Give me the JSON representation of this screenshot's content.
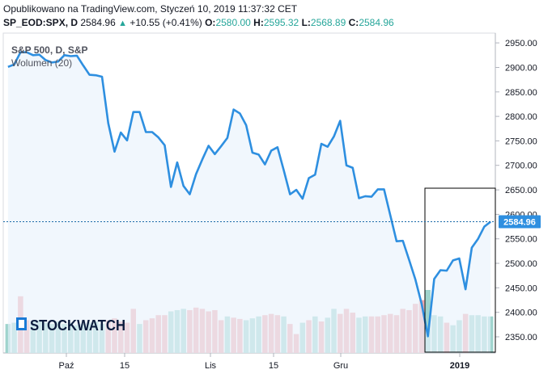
{
  "header": {
    "published": "Opublikowano na TradingView.com, Styczeń 10, 2019 11:37:32 CET",
    "symbol": "SP_EOD:SPX, D",
    "last": "2584.96",
    "change": "+10.55 (+0.41%)",
    "o_label": "O:",
    "o_value": "2580.00",
    "h_label": "H:",
    "h_value": "2595.32",
    "l_label": "L:",
    "l_value": "2568.89",
    "c_label": "C:",
    "c_value": "2584.96"
  },
  "legend": {
    "title": "S&P 500, D, S&P",
    "volume": "Wolumen (20)"
  },
  "watermark": "STOCKWATCH",
  "colors": {
    "line": "#2e8fe0",
    "fill": "#eaf3fc",
    "vol_up": "#9fd4cd",
    "vol_down": "#f0a8ae",
    "price_label_bg": "#2e8fe0",
    "price_line": "#1a6aa8"
  },
  "chart_data": {
    "type": "line",
    "y_ticks": [
      2350,
      2400,
      2450,
      2500,
      2550,
      2600,
      2650,
      2700,
      2750,
      2800,
      2850,
      2900,
      2950
    ],
    "ylim": [
      2317,
      2970
    ],
    "x_ticks": [
      "Paź",
      "15",
      "Lis",
      "15",
      "Gru",
      "2019"
    ],
    "last_price_label": "2584.96",
    "price": [
      2901,
      2906,
      2931,
      2931,
      2925,
      2926,
      2915,
      2910,
      2912,
      2925,
      2923,
      2924,
      2904,
      2885,
      2884,
      2881,
      2786,
      2728,
      2767,
      2751,
      2809,
      2809,
      2768,
      2768,
      2757,
      2741,
      2656,
      2706,
      2658,
      2641,
      2682,
      2712,
      2740,
      2723,
      2739,
      2756,
      2814,
      2806,
      2782,
      2726,
      2722,
      2702,
      2730,
      2737,
      2690,
      2641,
      2650,
      2632,
      2674,
      2681,
      2744,
      2738,
      2759,
      2791,
      2700,
      2695,
      2633,
      2637,
      2636,
      2651,
      2651,
      2598,
      2545,
      2546,
      2507,
      2467,
      2417,
      2351,
      2468,
      2486,
      2485,
      2506,
      2510,
      2447,
      2532,
      2550,
      2575,
      2585
    ],
    "volume_dir": [
      "up",
      "up",
      "down",
      "down",
      "up",
      "up",
      "up",
      "up",
      "up",
      "up",
      "up",
      "up",
      "up",
      "up",
      "up",
      "up",
      "down",
      "down",
      "down",
      "down",
      "down",
      "up",
      "down",
      "down",
      "down",
      "down",
      "up",
      "up",
      "up",
      "down",
      "down",
      "down",
      "down",
      "down",
      "down",
      "up",
      "down",
      "down",
      "up",
      "up",
      "up",
      "down",
      "down",
      "down",
      "up",
      "down",
      "down",
      "up",
      "down",
      "up",
      "down",
      "up",
      "up",
      "down",
      "down",
      "down",
      "up",
      "up",
      "down",
      "down",
      "down",
      "down",
      "down",
      "down",
      "down",
      "down",
      "down",
      "up",
      "up",
      "up",
      "down",
      "up",
      "up",
      "down",
      "up",
      "up",
      "up",
      "up"
    ],
    "volume": [
      0.46,
      0.48,
      0.9,
      0.52,
      0.5,
      0.52,
      0.48,
      0.46,
      0.5,
      0.46,
      0.48,
      0.44,
      0.46,
      0.48,
      0.5,
      0.46,
      0.52,
      0.55,
      0.5,
      0.48,
      0.7,
      0.46,
      0.52,
      0.55,
      0.6,
      0.6,
      0.66,
      0.68,
      0.7,
      0.68,
      0.72,
      0.7,
      0.66,
      0.68,
      0.52,
      0.58,
      0.56,
      0.54,
      0.52,
      0.55,
      0.58,
      0.6,
      0.62,
      0.6,
      0.58,
      0.46,
      0.3,
      0.48,
      0.52,
      0.58,
      0.5,
      0.56,
      0.7,
      0.62,
      0.7,
      0.64,
      0.56,
      0.58,
      0.58,
      0.58,
      0.6,
      0.62,
      0.6,
      0.7,
      0.68,
      0.78,
      0.84,
      1.0,
      0.6,
      0.58,
      0.48,
      0.44,
      0.52,
      0.62,
      0.6,
      0.6,
      0.58,
      0.58
    ]
  }
}
